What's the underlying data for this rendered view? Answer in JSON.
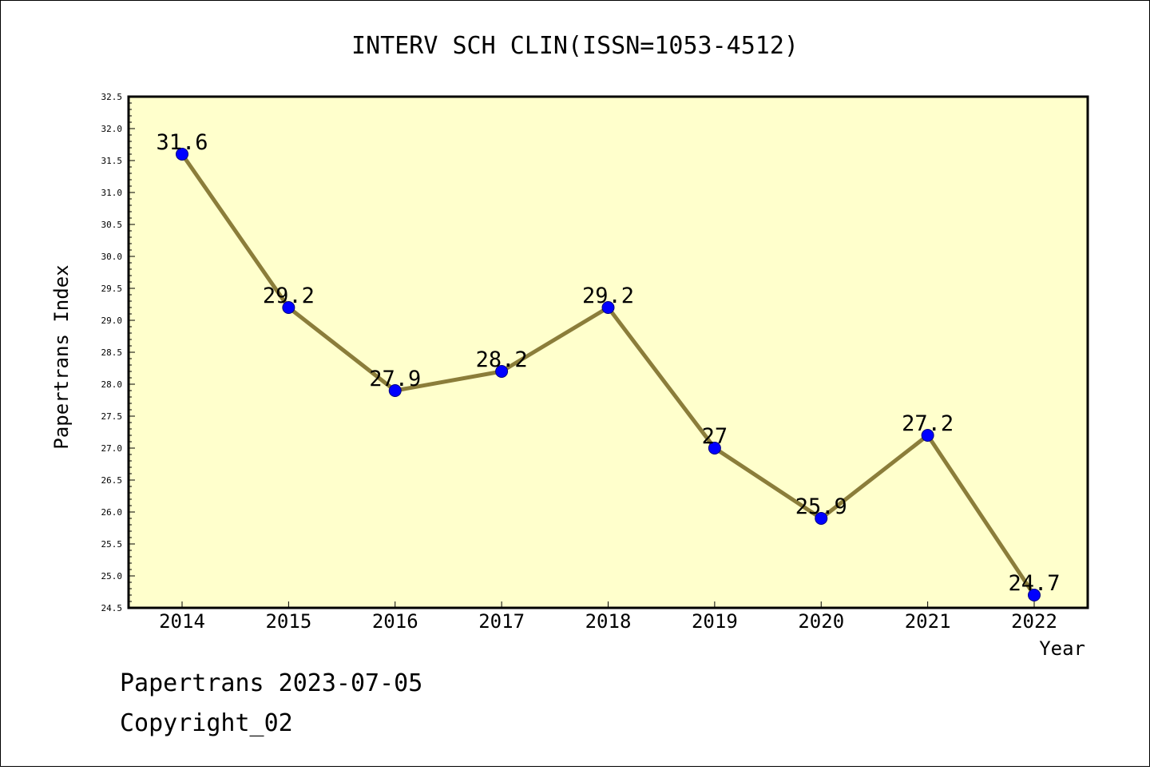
{
  "chart_data": {
    "type": "line",
    "title": "INTERV SCH CLIN(ISSN=1053-4512)",
    "xlabel": "Year",
    "ylabel": "Papertrans Index",
    "categories": [
      "2014",
      "2015",
      "2016",
      "2017",
      "2018",
      "2019",
      "2020",
      "2021",
      "2022"
    ],
    "values": [
      31.6,
      29.2,
      27.9,
      28.2,
      29.2,
      27.0,
      25.9,
      27.2,
      24.7
    ],
    "data_labels": [
      "31.6",
      "29.2",
      "27.9",
      "28.2",
      "29.2",
      "27",
      "25.9",
      "27.2",
      "24.7"
    ],
    "ylim": [
      24.5,
      32.5
    ],
    "yticks": [
      "24.5",
      "25.0",
      "25.5",
      "26.0",
      "26.5",
      "27.0",
      "27.5",
      "28.0",
      "28.5",
      "29.0",
      "29.5",
      "30.0",
      "30.5",
      "31.0",
      "31.5",
      "32.0",
      "32.5"
    ],
    "grid": false,
    "legend": "none",
    "colors": {
      "plot_background": "#ffffcc",
      "line": "#8b7d3a",
      "marker": "#0000ff",
      "marker_edge": "#000080"
    }
  },
  "footer": {
    "line1": "Papertrans 2023-07-05",
    "line2": "Copyright_02"
  }
}
